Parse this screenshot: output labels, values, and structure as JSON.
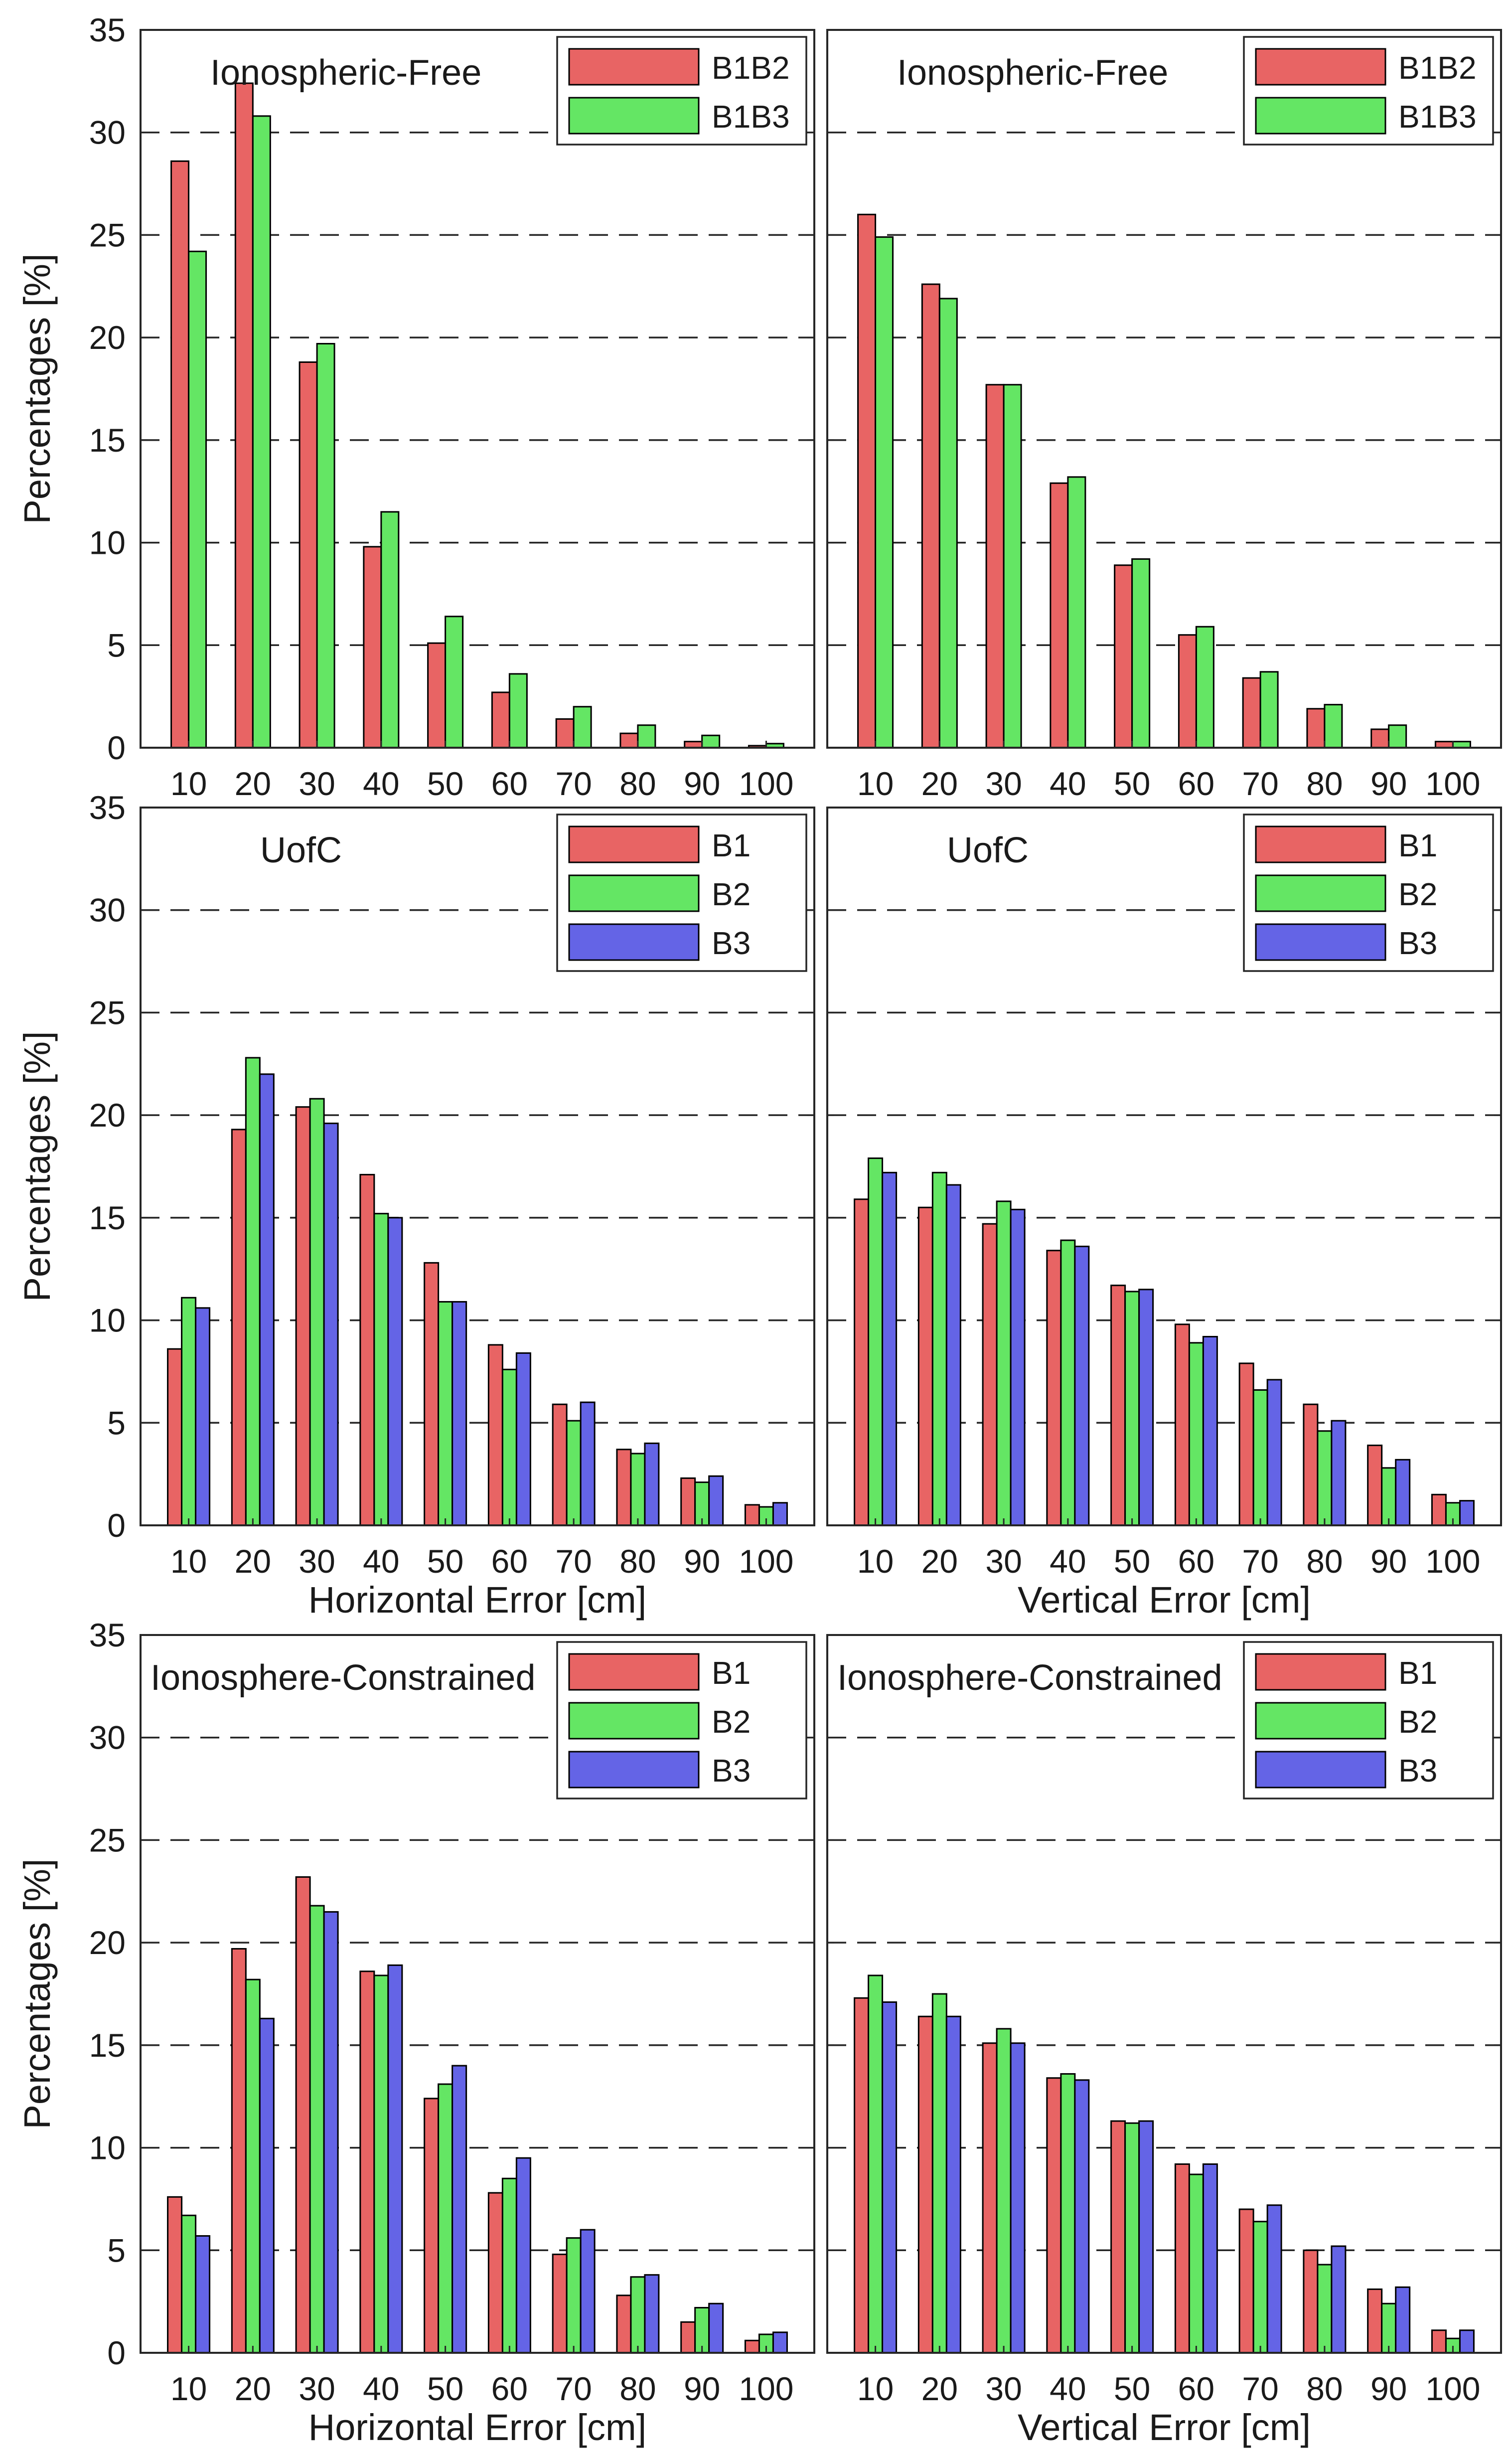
{
  "chart_data": [
    {
      "type": "bar",
      "title": "Ionospheric-Free",
      "xlabel": "",
      "ylabel": "Percentages [%]",
      "ylim": [
        0,
        35
      ],
      "yticks": [
        0,
        5,
        10,
        15,
        20,
        25,
        30,
        35
      ],
      "grid": "horizontal dashed",
      "legend": "top-right",
      "categories": [
        "10",
        "20",
        "30",
        "40",
        "50",
        "60",
        "70",
        "80",
        "90",
        "100"
      ],
      "series": [
        {
          "name": "B1B2",
          "color": "#e86464",
          "values": [
            28.6,
            32.4,
            18.8,
            9.8,
            5.1,
            2.7,
            1.4,
            0.7,
            0.3,
            0.1
          ]
        },
        {
          "name": "B1B3",
          "color": "#64e664",
          "values": [
            24.2,
            30.8,
            19.7,
            11.5,
            6.4,
            3.6,
            2.0,
            1.1,
            0.6,
            0.2
          ]
        }
      ]
    },
    {
      "type": "bar",
      "title": "Ionospheric-Free",
      "xlabel": "",
      "ylabel": "",
      "ylim": [
        0,
        35
      ],
      "yticks": [
        0,
        5,
        10,
        15,
        20,
        25,
        30,
        35
      ],
      "grid": "horizontal dashed",
      "legend": "top-right",
      "categories": [
        "10",
        "20",
        "30",
        "40",
        "50",
        "60",
        "70",
        "80",
        "90",
        "100"
      ],
      "series": [
        {
          "name": "B1B2",
          "color": "#e86464",
          "values": [
            26.0,
            22.6,
            17.7,
            12.9,
            8.9,
            5.5,
            3.4,
            1.9,
            0.9,
            0.3
          ]
        },
        {
          "name": "B1B3",
          "color": "#64e664",
          "values": [
            24.9,
            21.9,
            17.7,
            13.2,
            9.2,
            5.9,
            3.7,
            2.1,
            1.1,
            0.3
          ]
        }
      ]
    },
    {
      "type": "bar",
      "title": "UofC",
      "xlabel": "Horizontal Error [cm]",
      "ylabel": "Percentages [%]",
      "ylim": [
        0,
        35
      ],
      "yticks": [
        0,
        5,
        10,
        15,
        20,
        25,
        30,
        35
      ],
      "grid": "horizontal dashed",
      "legend": "top-right",
      "categories": [
        "10",
        "20",
        "30",
        "40",
        "50",
        "60",
        "70",
        "80",
        "90",
        "100"
      ],
      "series": [
        {
          "name": "B1",
          "color": "#e86464",
          "values": [
            8.6,
            19.3,
            20.4,
            17.1,
            12.8,
            8.8,
            5.9,
            3.7,
            2.3,
            1.0
          ]
        },
        {
          "name": "B2",
          "color": "#64e664",
          "values": [
            11.1,
            22.8,
            20.8,
            15.2,
            10.9,
            7.6,
            5.1,
            3.5,
            2.1,
            0.9
          ]
        },
        {
          "name": "B3",
          "color": "#6464e6",
          "values": [
            10.6,
            22.0,
            19.6,
            15.0,
            10.9,
            8.4,
            6.0,
            4.0,
            2.4,
            1.1
          ]
        }
      ]
    },
    {
      "type": "bar",
      "title": "UofC",
      "xlabel": "Vertical Error [cm]",
      "ylabel": "",
      "ylim": [
        0,
        35
      ],
      "yticks": [
        0,
        5,
        10,
        15,
        20,
        25,
        30,
        35
      ],
      "grid": "horizontal dashed",
      "legend": "top-right",
      "categories": [
        "10",
        "20",
        "30",
        "40",
        "50",
        "60",
        "70",
        "80",
        "90",
        "100"
      ],
      "series": [
        {
          "name": "B1",
          "color": "#e86464",
          "values": [
            15.9,
            15.5,
            14.7,
            13.4,
            11.7,
            9.8,
            7.9,
            5.9,
            3.9,
            1.5
          ]
        },
        {
          "name": "B2",
          "color": "#64e664",
          "values": [
            17.9,
            17.2,
            15.8,
            13.9,
            11.4,
            8.9,
            6.6,
            4.6,
            2.8,
            1.1
          ]
        },
        {
          "name": "B3",
          "color": "#6464e6",
          "values": [
            17.2,
            16.6,
            15.4,
            13.6,
            11.5,
            9.2,
            7.1,
            5.1,
            3.2,
            1.2
          ]
        }
      ]
    },
    {
      "type": "bar",
      "title": "Ionosphere-Constrained",
      "xlabel": "Horizontal Error [cm]",
      "ylabel": "Percentages [%]",
      "ylim": [
        0,
        35
      ],
      "yticks": [
        0,
        5,
        10,
        15,
        20,
        25,
        30,
        35
      ],
      "grid": "horizontal dashed",
      "legend": "top-right",
      "categories": [
        "10",
        "20",
        "30",
        "40",
        "50",
        "60",
        "70",
        "80",
        "90",
        "100"
      ],
      "series": [
        {
          "name": "B1",
          "color": "#e86464",
          "values": [
            7.6,
            19.7,
            23.2,
            18.6,
            12.4,
            7.8,
            4.8,
            2.8,
            1.5,
            0.6
          ]
        },
        {
          "name": "B2",
          "color": "#64e664",
          "values": [
            6.7,
            18.2,
            21.8,
            18.4,
            13.1,
            8.5,
            5.6,
            3.7,
            2.2,
            0.9
          ]
        },
        {
          "name": "B3",
          "color": "#6464e6",
          "values": [
            5.7,
            16.3,
            21.5,
            18.9,
            14.0,
            9.5,
            6.0,
            3.8,
            2.4,
            1.0
          ]
        }
      ]
    },
    {
      "type": "bar",
      "title": "Ionosphere-Constrained",
      "xlabel": "Vertical Error [cm]",
      "ylabel": "",
      "ylim": [
        0,
        35
      ],
      "yticks": [
        0,
        5,
        10,
        15,
        20,
        25,
        30,
        35
      ],
      "grid": "horizontal dashed",
      "legend": "top-right",
      "categories": [
        "10",
        "20",
        "30",
        "40",
        "50",
        "60",
        "70",
        "80",
        "90",
        "100"
      ],
      "series": [
        {
          "name": "B1",
          "color": "#e86464",
          "values": [
            17.3,
            16.4,
            15.1,
            13.4,
            11.3,
            9.2,
            7.0,
            5.0,
            3.1,
            1.1
          ]
        },
        {
          "name": "B2",
          "color": "#64e664",
          "values": [
            18.4,
            17.5,
            15.8,
            13.6,
            11.2,
            8.7,
            6.4,
            4.3,
            2.4,
            0.7
          ]
        },
        {
          "name": "B3",
          "color": "#6464e6",
          "values": [
            17.1,
            16.4,
            15.1,
            13.3,
            11.3,
            9.2,
            7.2,
            5.2,
            3.2,
            1.1
          ]
        }
      ]
    }
  ]
}
